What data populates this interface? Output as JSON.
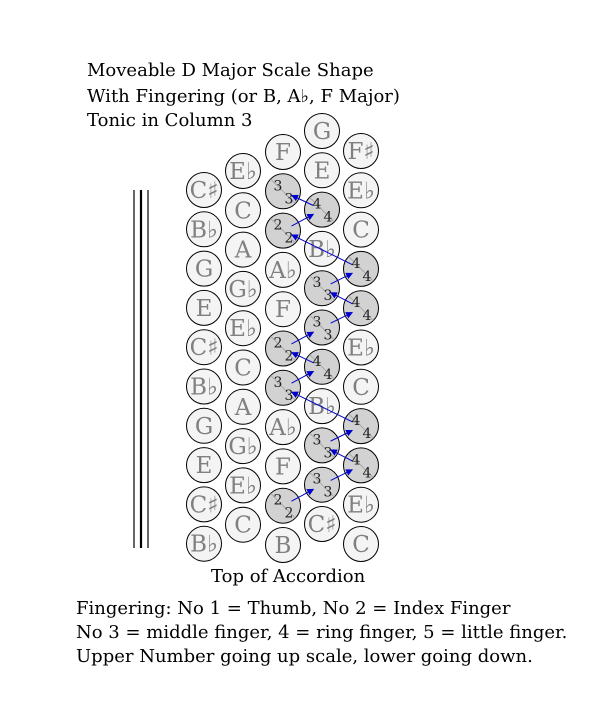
{
  "title_lines": [
    "Moveable D Major Scale Shape",
    "With Fingering (or B, A♭, F Major)",
    "Tonic in Column 3"
  ],
  "caption": "Top of Accordion",
  "notes": [
    "Fingering: No 1 = Thumb, No 2 = Index Finger",
    "No 3 = middle finger, 4 = ring finger, 5 = little finger.",
    "Upper Number going up scale, lower going down."
  ],
  "colors": {
    "button_fill": "#f4f4f4",
    "scale_fill": "#d2d2d2",
    "label": "#808080",
    "arrow": "#0000cc"
  },
  "columns": [
    {
      "buttons": [
        {
          "label": "C♯"
        },
        {
          "label": "B♭"
        },
        {
          "label": "G"
        },
        {
          "label": "E"
        },
        {
          "label": "C♯"
        },
        {
          "label": "B♭"
        },
        {
          "label": "G"
        },
        {
          "label": "E"
        },
        {
          "label": "C♯"
        },
        {
          "label": "B♭"
        }
      ]
    },
    {
      "buttons": [
        {
          "label": "E♭"
        },
        {
          "label": "C"
        },
        {
          "label": "A"
        },
        {
          "label": "G♭"
        },
        {
          "label": "E♭"
        },
        {
          "label": "C"
        },
        {
          "label": "A"
        },
        {
          "label": "G♭"
        },
        {
          "label": "E♭"
        },
        {
          "label": "C"
        }
      ]
    },
    {
      "buttons": [
        {
          "label": "F"
        },
        {
          "label": "",
          "scale": true,
          "up": "3",
          "down": "3"
        },
        {
          "label": "",
          "scale": true,
          "up": "2",
          "down": "2"
        },
        {
          "label": "A♭"
        },
        {
          "label": "F"
        },
        {
          "label": "",
          "scale": true,
          "up": "2",
          "down": "2"
        },
        {
          "label": "",
          "scale": true,
          "up": "3",
          "down": "3"
        },
        {
          "label": "A♭"
        },
        {
          "label": "F"
        },
        {
          "label": "",
          "scale": true,
          "up": "2",
          "down": "2"
        },
        {
          "label": "B"
        }
      ]
    },
    {
      "buttons": [
        {
          "label": "G"
        },
        {
          "label": "E"
        },
        {
          "label": "",
          "scale": true,
          "up": "4",
          "down": "4"
        },
        {
          "label": "B♭"
        },
        {
          "label": "",
          "scale": true,
          "up": "3",
          "down": "3"
        },
        {
          "label": "",
          "scale": true,
          "up": "3",
          "down": "3"
        },
        {
          "label": "",
          "scale": true,
          "up": "4",
          "down": "4"
        },
        {
          "label": "B♭"
        },
        {
          "label": "",
          "scale": true,
          "up": "3",
          "down": "3"
        },
        {
          "label": "",
          "scale": true,
          "up": "3",
          "down": "3"
        },
        {
          "label": "C♯"
        }
      ]
    },
    {
      "buttons": [
        {
          "label": "F♯"
        },
        {
          "label": "E♭"
        },
        {
          "label": "C"
        },
        {
          "label": "",
          "scale": true,
          "up": "4",
          "down": "4"
        },
        {
          "label": "",
          "scale": true,
          "up": "4",
          "down": "4"
        },
        {
          "label": "E♭"
        },
        {
          "label": "C"
        },
        {
          "label": "",
          "scale": true,
          "up": "4",
          "down": "4"
        },
        {
          "label": "",
          "scale": true,
          "up": "4",
          "down": "4"
        },
        {
          "label": "E♭"
        },
        {
          "label": "C"
        }
      ]
    }
  ],
  "arrow_path": [
    [
      2,
      9
    ],
    [
      3,
      9
    ],
    [
      4,
      8
    ],
    [
      3,
      8
    ],
    [
      4,
      7
    ],
    [
      2,
      6
    ],
    [
      3,
      6
    ],
    [
      2,
      5
    ],
    [
      3,
      5
    ],
    [
      4,
      4
    ],
    [
      3,
      4
    ],
    [
      4,
      3
    ],
    [
      2,
      2
    ],
    [
      3,
      2
    ],
    [
      2,
      1
    ]
  ]
}
